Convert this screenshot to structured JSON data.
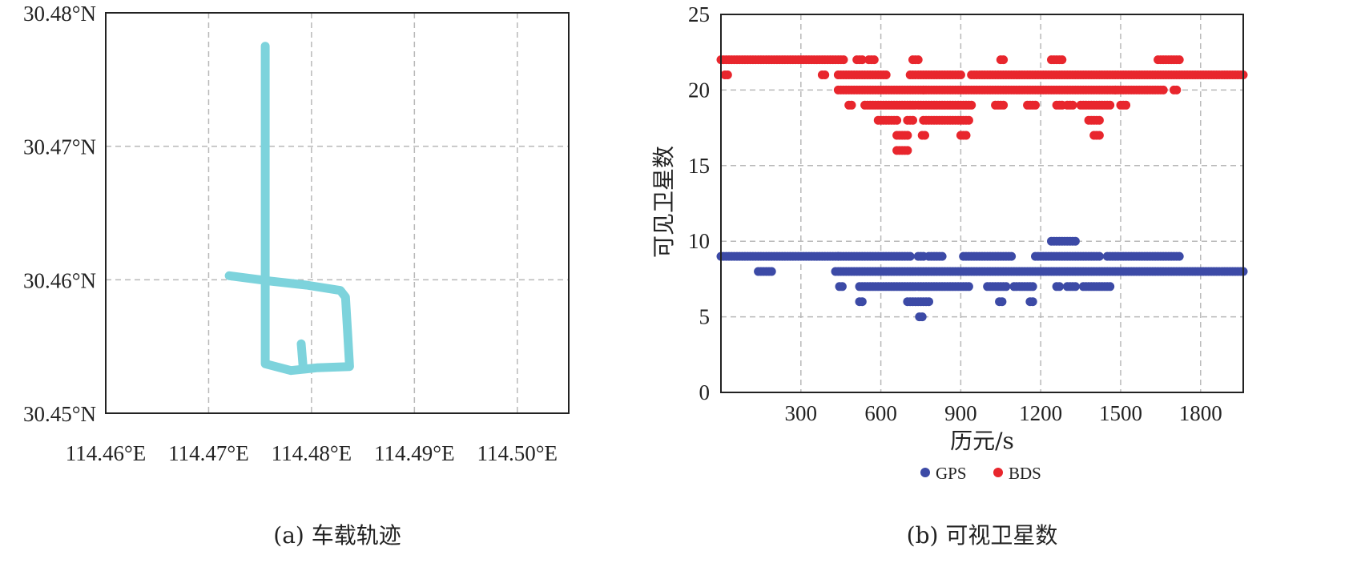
{
  "colors": {
    "track": "#7dd3dc",
    "gps": "#3c4aa6",
    "bds": "#e8262d"
  },
  "chart_data": [
    {
      "type": "line",
      "caption": "(a) 车载轨迹",
      "xlim": [
        114.46,
        114.505
      ],
      "ylim": [
        30.45,
        30.48
      ],
      "x_ticks": [
        114.46,
        114.47,
        114.48,
        114.49,
        114.5
      ],
      "x_tick_labels": [
        "114.46°E",
        "114.47°E",
        "114.48°E",
        "114.49°E",
        "114.50°E"
      ],
      "y_ticks": [
        30.45,
        30.46,
        30.47,
        30.48
      ],
      "y_tick_labels": [
        "30.45°N",
        "30.46°N",
        "30.47°N",
        "30.48°N"
      ],
      "grid": true,
      "series": [
        {
          "points": [
            [
              114.4755,
              30.4775
            ],
            [
              114.4755,
              30.468
            ],
            [
              114.4755,
              30.461
            ],
            [
              114.4755,
              30.4537
            ],
            [
              114.478,
              30.4532
            ],
            [
              114.4805,
              30.4534
            ],
            [
              114.4837,
              30.4535
            ],
            [
              114.4835,
              30.4562
            ],
            [
              114.4833,
              30.4587
            ],
            [
              114.4828,
              30.4592
            ],
            [
              114.4795,
              30.4596
            ],
            [
              114.476,
              30.4599
            ],
            [
              114.472,
              30.4603
            ]
          ]
        },
        {
          "points": [
            [
              114.479,
              30.4552
            ],
            [
              114.4792,
              30.4533
            ]
          ]
        }
      ]
    },
    {
      "type": "scatter",
      "caption": "(b) 可视卫星数",
      "xlabel": "历元/s",
      "ylabel": "可见卫星数",
      "xlim": [
        0,
        1960
      ],
      "ylim": [
        0,
        25
      ],
      "x_ticks": [
        300,
        600,
        900,
        1200,
        1500,
        1800
      ],
      "y_ticks": [
        0,
        5,
        10,
        15,
        20,
        25
      ],
      "grid": true,
      "legend": "bottom-center",
      "series": [
        {
          "name": "GPS",
          "segments": [
            {
              "value": 9,
              "from": 0,
              "to": 440
            },
            {
              "value": 8,
              "from": 140,
              "to": 190
            },
            {
              "value": 8,
              "from": 430,
              "to": 1960
            },
            {
              "value": 9,
              "from": 440,
              "to": 710
            },
            {
              "value": 7,
              "from": 445,
              "to": 455
            },
            {
              "value": 7,
              "from": 520,
              "to": 930
            },
            {
              "value": 6,
              "from": 520,
              "to": 530
            },
            {
              "value": 9,
              "from": 740,
              "to": 760
            },
            {
              "value": 9,
              "from": 780,
              "to": 830
            },
            {
              "value": 6,
              "from": 700,
              "to": 780
            },
            {
              "value": 5,
              "from": 745,
              "to": 755
            },
            {
              "value": 9,
              "from": 910,
              "to": 1090
            },
            {
              "value": 7,
              "from": 1000,
              "to": 1070
            },
            {
              "value": 6,
              "from": 1045,
              "to": 1055
            },
            {
              "value": 7,
              "from": 1100,
              "to": 1170
            },
            {
              "value": 6,
              "from": 1160,
              "to": 1170
            },
            {
              "value": 9,
              "from": 1180,
              "to": 1420
            },
            {
              "value": 10,
              "from": 1240,
              "to": 1330
            },
            {
              "value": 7,
              "from": 1260,
              "to": 1270
            },
            {
              "value": 7,
              "from": 1300,
              "to": 1330
            },
            {
              "value": 7,
              "from": 1360,
              "to": 1460
            },
            {
              "value": 9,
              "from": 1450,
              "to": 1720
            }
          ]
        },
        {
          "name": "BDS",
          "segments": [
            {
              "value": 22,
              "from": 0,
              "to": 460
            },
            {
              "value": 21,
              "from": 15,
              "to": 25
            },
            {
              "value": 21,
              "from": 380,
              "to": 390
            },
            {
              "value": 21,
              "from": 440,
              "to": 620
            },
            {
              "value": 20,
              "from": 440,
              "to": 760
            },
            {
              "value": 22,
              "from": 510,
              "to": 530
            },
            {
              "value": 22,
              "from": 555,
              "to": 575
            },
            {
              "value": 19,
              "from": 480,
              "to": 490
            },
            {
              "value": 19,
              "from": 540,
              "to": 940
            },
            {
              "value": 18,
              "from": 590,
              "to": 660
            },
            {
              "value": 17,
              "from": 660,
              "to": 700
            },
            {
              "value": 16,
              "from": 660,
              "to": 700
            },
            {
              "value": 18,
              "from": 700,
              "to": 720
            },
            {
              "value": 22,
              "from": 720,
              "to": 740
            },
            {
              "value": 21,
              "from": 710,
              "to": 900
            },
            {
              "value": 18,
              "from": 760,
              "to": 930
            },
            {
              "value": 17,
              "from": 755,
              "to": 765
            },
            {
              "value": 17,
              "from": 900,
              "to": 920
            },
            {
              "value": 20,
              "from": 760,
              "to": 1480
            },
            {
              "value": 21,
              "from": 940,
              "to": 1460
            },
            {
              "value": 22,
              "from": 1050,
              "to": 1060
            },
            {
              "value": 19,
              "from": 1030,
              "to": 1060
            },
            {
              "value": 22,
              "from": 1240,
              "to": 1280
            },
            {
              "value": 19,
              "from": 1150,
              "to": 1180
            },
            {
              "value": 19,
              "from": 1260,
              "to": 1280
            },
            {
              "value": 19,
              "from": 1300,
              "to": 1320
            },
            {
              "value": 19,
              "from": 1350,
              "to": 1460
            },
            {
              "value": 18,
              "from": 1380,
              "to": 1420
            },
            {
              "value": 17,
              "from": 1400,
              "to": 1420
            },
            {
              "value": 19,
              "from": 1500,
              "to": 1520
            },
            {
              "value": 20,
              "from": 1480,
              "to": 1660
            },
            {
              "value": 21,
              "from": 1470,
              "to": 1960
            },
            {
              "value": 22,
              "from": 1640,
              "to": 1720
            },
            {
              "value": 20,
              "from": 1700,
              "to": 1710
            }
          ]
        }
      ]
    }
  ]
}
